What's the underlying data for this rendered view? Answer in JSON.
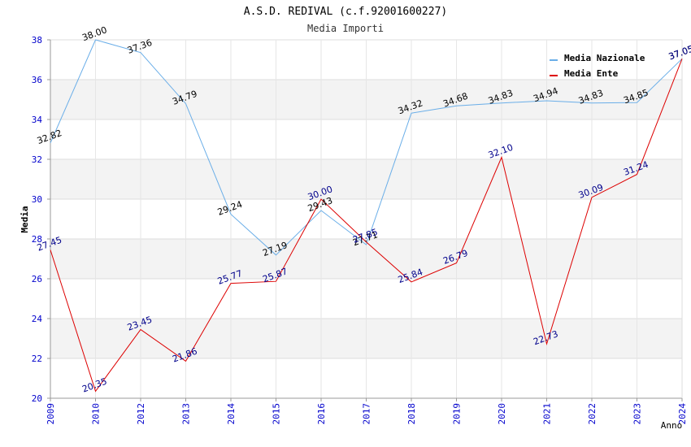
{
  "chart_data": {
    "type": "line",
    "title": "A.S.D. REDIVAL (c.f.92001600227)",
    "subtitle": "Media Importi",
    "xlabel": "Anno",
    "ylabel": "Media",
    "ylim": [
      20,
      38
    ],
    "yticks": [
      20,
      22,
      24,
      26,
      28,
      30,
      32,
      34,
      36,
      38
    ],
    "grid": true,
    "legend_position": "top-right",
    "categories": [
      "2009",
      "2010",
      "2012",
      "2013",
      "2014",
      "2015",
      "2016",
      "2017",
      "2018",
      "2019",
      "2020",
      "2021",
      "2022",
      "2023",
      "2024"
    ],
    "series": [
      {
        "name": "Media Nazionale",
        "color": "#6aaee8",
        "label_color": "#000000",
        "values": [
          32.82,
          38.0,
          37.36,
          34.79,
          29.24,
          27.19,
          29.43,
          27.71,
          34.32,
          34.68,
          34.83,
          34.94,
          34.83,
          34.85,
          37.05
        ],
        "labels": [
          "32.82",
          "38.00",
          "37.36",
          "34.79",
          "29.24",
          "27.19",
          "29.43",
          "27.71",
          "34.32",
          "34.68",
          "34.83",
          "34.94",
          "34.83",
          "34.85",
          "37.05"
        ]
      },
      {
        "name": "Media Ente",
        "color": "#dd0000",
        "label_color": "#00008b",
        "values": [
          27.45,
          20.35,
          23.45,
          21.86,
          25.77,
          25.87,
          30.0,
          27.85,
          25.84,
          26.79,
          32.1,
          22.73,
          30.09,
          31.24,
          37.05
        ],
        "labels": [
          "27.45",
          "20.35",
          "23.45",
          "21.86",
          "25.77",
          "25.87",
          "30.00",
          "27.85",
          "25.84",
          "26.79",
          "32.10",
          "22.73",
          "30.09",
          "31.24",
          "37.05"
        ]
      }
    ]
  }
}
